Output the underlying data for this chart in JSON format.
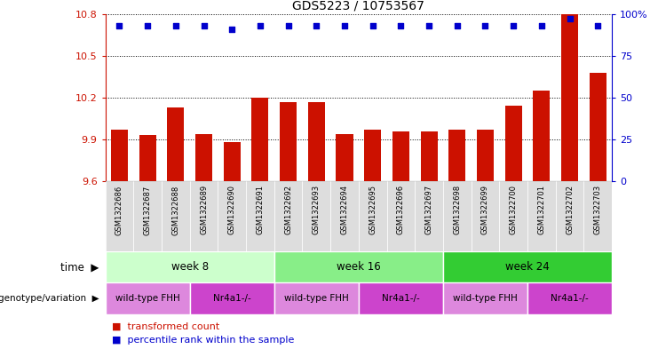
{
  "title": "GDS5223 / 10753567",
  "samples": [
    "GSM1322686",
    "GSM1322687",
    "GSM1322688",
    "GSM1322689",
    "GSM1322690",
    "GSM1322691",
    "GSM1322692",
    "GSM1322693",
    "GSM1322694",
    "GSM1322695",
    "GSM1322696",
    "GSM1322697",
    "GSM1322698",
    "GSM1322699",
    "GSM1322700",
    "GSM1322701",
    "GSM1322702",
    "GSM1322703"
  ],
  "transformed_count": [
    9.97,
    9.93,
    10.13,
    9.94,
    9.88,
    10.2,
    10.17,
    10.17,
    9.94,
    9.97,
    9.96,
    9.96,
    9.97,
    9.97,
    10.14,
    10.25,
    10.8,
    10.38
  ],
  "percentile_rank": [
    93,
    93,
    93,
    93,
    91,
    93,
    93,
    93,
    93,
    93,
    93,
    93,
    93,
    93,
    93,
    93,
    97,
    93
  ],
  "bar_color": "#cc1100",
  "dot_color": "#0000cc",
  "y_min": 9.6,
  "y_max": 10.8,
  "y_ticks": [
    9.6,
    9.9,
    10.2,
    10.5,
    10.8
  ],
  "y2_ticks": [
    0,
    25,
    50,
    75,
    100
  ],
  "y2_labels": [
    "0",
    "25",
    "50",
    "75",
    "100%"
  ],
  "time_groups": [
    {
      "label": "week 8",
      "start": 0,
      "end": 5,
      "color": "#ccffcc"
    },
    {
      "label": "week 16",
      "start": 6,
      "end": 11,
      "color": "#88ee88"
    },
    {
      "label": "week 24",
      "start": 12,
      "end": 17,
      "color": "#33cc33"
    }
  ],
  "genotype_groups": [
    {
      "label": "wild-type FHH",
      "start": 0,
      "end": 2,
      "color": "#dd88dd"
    },
    {
      "label": "Nr4a1-/-",
      "start": 3,
      "end": 5,
      "color": "#cc44cc"
    },
    {
      "label": "wild-type FHH",
      "start": 6,
      "end": 8,
      "color": "#dd88dd"
    },
    {
      "label": "Nr4a1-/-",
      "start": 9,
      "end": 11,
      "color": "#cc44cc"
    },
    {
      "label": "wild-type FHH",
      "start": 12,
      "end": 14,
      "color": "#dd88dd"
    },
    {
      "label": "Nr4a1-/-",
      "start": 15,
      "end": 17,
      "color": "#cc44cc"
    }
  ],
  "bar_color_label": "#cc1100",
  "dot_color_label": "#0000cc",
  "legend_label_count": "transformed count",
  "legend_label_pct": "percentile rank within the sample",
  "tick_label_color": "#cc1100",
  "right_tick_color": "#0000cc",
  "label_time": "time",
  "label_genotype": "genotype/variation",
  "sample_bg_color": "#dddddd",
  "sample_bg_color2": "#cccccc"
}
